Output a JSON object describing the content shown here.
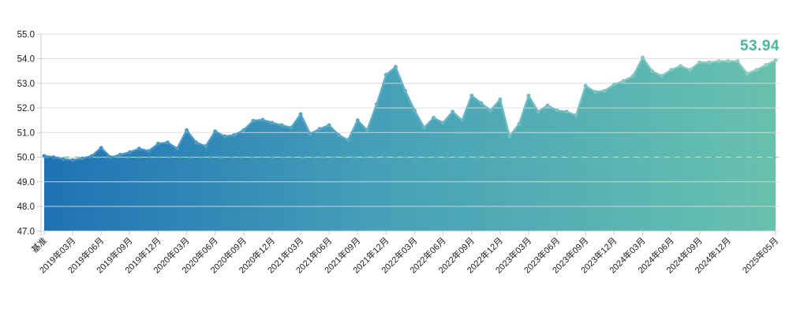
{
  "chart_data": {
    "type": "area",
    "title": "",
    "legend_position": "none",
    "grid": true,
    "baseline": 50.0,
    "baseline_style": "dashed-green",
    "last_value_label": "53.94",
    "ylim": [
      47.0,
      55.0
    ],
    "y_ticks": [
      "55.0",
      "54.0",
      "53.0",
      "52.0",
      "51.0",
      "50.0",
      "49.0",
      "48.0",
      "47.0"
    ],
    "x_tick_labels": [
      "基准",
      "2019年03月",
      "2019年06月",
      "2019年09月",
      "2019年12月",
      "2020年03月",
      "2020年06月",
      "2020年09月",
      "2020年12月",
      "2021年03月",
      "2021年06月",
      "2021年09月",
      "2021年12月",
      "2022年03月",
      "2022年06月",
      "2022年09月",
      "2022年12月",
      "2023年03月",
      "2023年06月",
      "2023年09月",
      "2023年12月",
      "2024年03月",
      "2024年06月",
      "2024年09月",
      "2024年12月",
      "2025年05月"
    ],
    "x_tick_indices": [
      0,
      3,
      6,
      9,
      12,
      15,
      18,
      21,
      24,
      27,
      30,
      33,
      36,
      39,
      42,
      45,
      48,
      51,
      54,
      57,
      60,
      63,
      66,
      69,
      72,
      77
    ],
    "values": [
      50.05,
      50.0,
      49.92,
      49.88,
      49.95,
      50.05,
      50.38,
      50.0,
      50.1,
      50.2,
      50.35,
      50.25,
      50.55,
      50.6,
      50.35,
      51.1,
      50.6,
      50.45,
      51.05,
      50.85,
      50.9,
      51.1,
      51.48,
      51.52,
      51.4,
      51.3,
      51.2,
      51.75,
      50.95,
      51.15,
      51.3,
      50.9,
      50.7,
      51.5,
      51.1,
      52.15,
      53.35,
      53.67,
      52.7,
      51.9,
      51.2,
      51.6,
      51.4,
      51.85,
      51.5,
      52.5,
      52.2,
      51.9,
      52.35,
      50.85,
      51.35,
      52.5,
      51.85,
      52.1,
      51.9,
      51.85,
      51.7,
      52.9,
      52.65,
      52.7,
      52.95,
      53.1,
      53.3,
      54.05,
      53.5,
      53.3,
      53.55,
      53.7,
      53.55,
      53.85,
      53.85,
      53.9,
      53.9,
      53.9,
      53.4,
      53.55,
      53.75,
      53.94
    ],
    "colors": {
      "fill_start": "#1F72B4",
      "fill_mid": "#45A0B8",
      "fill_end": "#68C1AE",
      "line_start": "#3E8EC6",
      "line_mid": "#5FB0C4",
      "line_end": "#8ED3BF",
      "baseline_green": "#77C08E",
      "grid": "#D9D9D9",
      "axis": "#C9C9C9",
      "axis_text": "#1A1A1A",
      "last_value": "#4AB79A"
    }
  }
}
